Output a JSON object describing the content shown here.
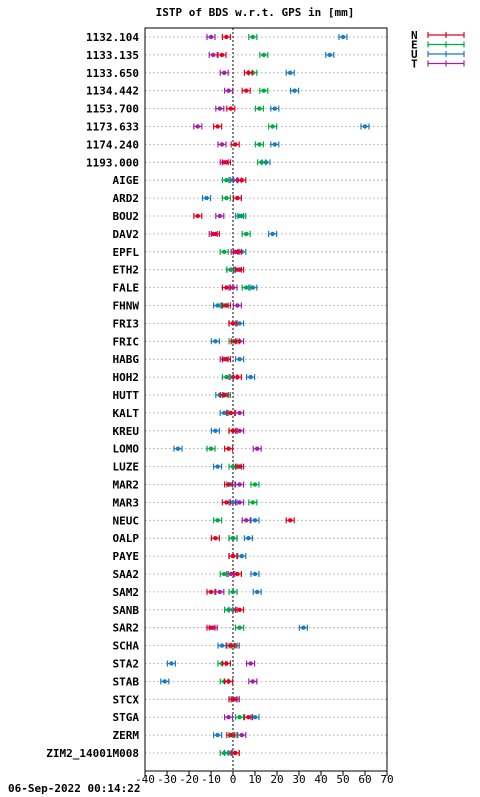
{
  "chart_data": {
    "type": "scatter",
    "title": "ISTP of BDS w.r.t. GPS in [mm]",
    "xlim": [
      -40,
      70
    ],
    "x_ticks": [
      "-40",
      "-30",
      "-20",
      "-10",
      "0",
      "10",
      "20",
      "30",
      "40",
      "50",
      "60",
      "70"
    ],
    "grid": "horizontal dotted",
    "legend_position": "top-right, outside",
    "categories": [
      "1132.104",
      "1133.135",
      "1133.650",
      "1134.442",
      "1153.700",
      "1173.633",
      "1174.240",
      "1193.000",
      "AIGE",
      "ARD2",
      "BOU2",
      "DAV2",
      "EPFL",
      "ETH2",
      "FALE",
      "FHNW",
      "FRI3",
      "FRIC",
      "HABG",
      "HOH2",
      "HUTT",
      "KALT",
      "KREU",
      "LOMO",
      "LUZE",
      "MAR2",
      "MAR3",
      "NEUC",
      "OALP",
      "PAYE",
      "SAA2",
      "SAM2",
      "SANB",
      "SAR2",
      "SCHA",
      "STA2",
      "STAB",
      "STCX",
      "STGA",
      "ZERM",
      "ZIM2_14001M008"
    ],
    "series": [
      {
        "name": "N",
        "color": "#e8001a",
        "values": [
          -3,
          -5,
          7,
          6,
          -1,
          -7,
          1,
          -3,
          4,
          2,
          -16,
          -8,
          2,
          3,
          -3,
          -3,
          0,
          1,
          -3,
          2,
          -4,
          -1,
          0,
          -2,
          3,
          -2,
          -3,
          26,
          -8,
          0,
          2,
          -10,
          3,
          -10,
          -1,
          -3,
          -2,
          0,
          7,
          -1,
          1
        ]
      },
      {
        "name": "E",
        "color": "#00aa44",
        "values": [
          9,
          14,
          9,
          14,
          12,
          18,
          12,
          13,
          -3,
          -3,
          4,
          6,
          -4,
          -1,
          6,
          -4,
          0,
          0,
          -3,
          -3,
          -3,
          -1,
          0,
          -10,
          0,
          10,
          9,
          -7,
          0,
          0,
          -4,
          0,
          -2,
          3,
          0,
          -5,
          -4,
          0,
          3,
          0,
          -4
        ]
      },
      {
        "name": "U",
        "color": "#1a7ac2",
        "values": [
          50,
          44,
          26,
          28,
          19,
          60,
          19,
          15,
          0,
          -12,
          3,
          18,
          4,
          -1,
          9,
          -7,
          3,
          -8,
          3,
          8,
          -6,
          -4,
          -8,
          -25,
          -7,
          -1,
          0,
          10,
          7,
          4,
          10,
          11,
          -2,
          32,
          -5,
          -28,
          -31,
          1,
          10,
          -7,
          -2
        ]
      },
      {
        "name": "T",
        "color": "#a020a8",
        "values": [
          -10,
          -9,
          -4,
          -2,
          -6,
          -16,
          -5,
          -4,
          2,
          2,
          -6,
          -9,
          1,
          2,
          0,
          2,
          0,
          3,
          -4,
          0,
          -3,
          3,
          3,
          11,
          2,
          3,
          3,
          6,
          0,
          0,
          -1,
          -6,
          0,
          -9,
          1,
          8,
          9,
          1,
          -2,
          4,
          1
        ]
      }
    ]
  },
  "footer": {
    "timestamp": "06-Sep-2022 00:14:22"
  }
}
